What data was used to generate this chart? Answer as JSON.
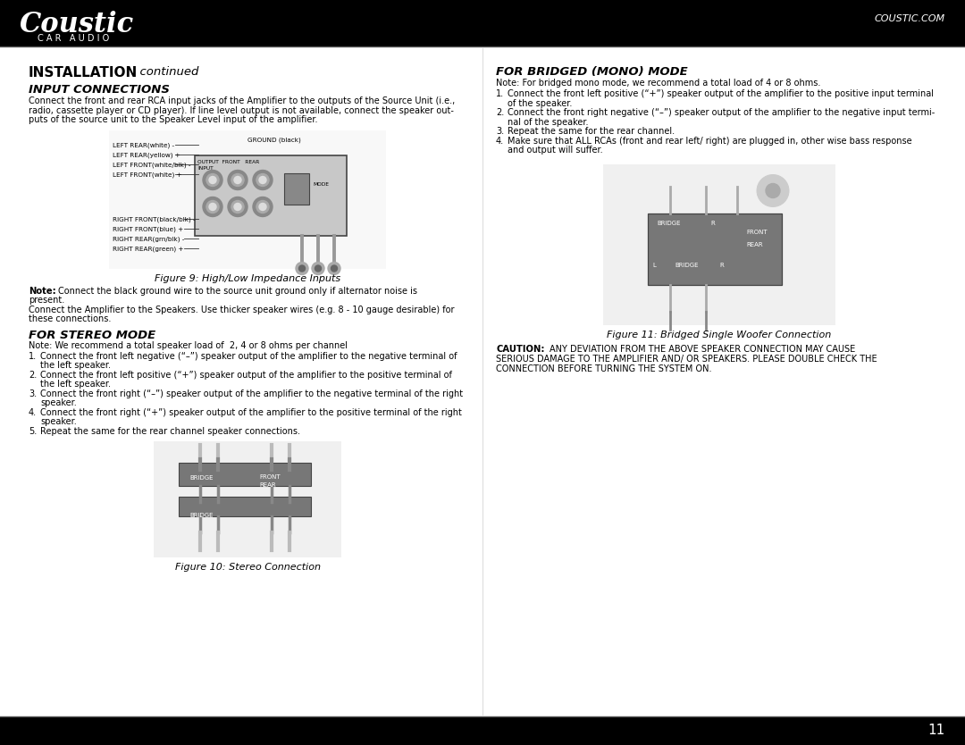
{
  "page_bg": "#ffffff",
  "header_bg": "#000000",
  "header_text_color": "#ffffff",
  "footer_bg": "#000000",
  "footer_text_color": "#ffffff",
  "body_text_color": "#000000",
  "header_left_title": "Coustic",
  "header_left_subtitle": "C A R   A U D I O",
  "header_right_text": "COUSTIC.COM",
  "footer_page_num": "11",
  "left_col_content": {
    "section_title": "INSTALLATION  continued",
    "subsection1_title": "INPUT CONNECTIONS",
    "subsection1_body": "Connect the front and rear RCA input jacks of the Amplifier to the outputs of the Source Unit (i.e.,\nradio, cassette player or CD player). If line level output is not available, connect the speaker out-\nputs of the source unit to the Speaker Level input of the amplifier.",
    "fig9_caption": "Figure 9: High/Low Impedance Inputs",
    "note_text": "Note: Connect the black ground wire to the source unit ground only if alternator noise is\npresent.\nConnect the Amplifier to the Speakers. Use thicker speaker wires (e.g. 8 - 10 gauge desirable) for\nthese connections.",
    "subsection2_title": "FOR STEREO MODE",
    "subsection2_note": "Note: We recommend a total speaker load of  2, 4 or 8 ohms per channel",
    "subsection2_items": [
      "Connect the front left negative (“–”) speaker output of the amplifier to the negative terminal of\nthe left speaker.",
      "Connect the front left positive (“+”) speaker output of the amplifier to the positive terminal of\nthe left speaker.",
      "Connect the front right (“–”) speaker output of the amplifier to the negative terminal of the right\nspeaker.",
      "Connect the front right (“+”) speaker output of the amplifier to the positive terminal of the right\nspeaker.",
      "Repeat the same for the rear channel speaker connections."
    ],
    "fig10_caption": "Figure 10: Stereo Connection"
  },
  "right_col_content": {
    "subsection3_title": "FOR BRIDGED (MONO) MODE",
    "subsection3_note": "Note: For bridged mono mode, we recommend a total load of 4 or 8 ohms.",
    "subsection3_items": [
      "Connect the front left positive (“+”) speaker output of the amplifier to the positive input terminal\nof the speaker.",
      "Connect the front right negative (“–”) speaker output of the amplifier to the negative input termi-\nnal of the speaker.",
      "Repeat the same for the rear channel.",
      "Make sure that ALL RCAs (front and rear left/ right) are plugged in, other wise bass response\nand output will suffer."
    ],
    "fig11_caption": "Figure 11: Bridged Single Woofer Connection",
    "caution_text": "CAUTION: ANY DEVIATION FROM THE ABOVE SPEAKER CONNECTION MAY CAUSE\nSERIOUS DAMAGE TO THE AMPLIFIER AND/ OR SPEAKERS. PLEASE DOUBLE CHECK THE\nCONNECTION BEFORE TURNING THE SYSTEM ON."
  }
}
